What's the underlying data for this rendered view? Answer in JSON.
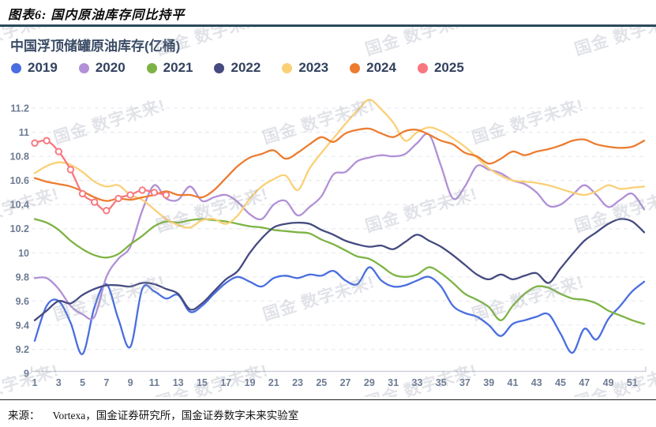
{
  "page": {
    "figure_title": "图表6: 国内原油库存同比持平",
    "source_prefix": "来源：",
    "source_text": "Vortexa，国金证券研究所，国金证券数字未来实验室",
    "watermark_text": "国金 数字未来!"
  },
  "chart": {
    "title": "中国浮顶储罐原油库存(亿桶)"
  },
  "chart_data": {
    "type": "line",
    "title": "中国浮顶储罐原油库存(亿桶)",
    "xlabel": "",
    "ylabel": "",
    "x_count": 52,
    "x_tick_labels": [
      1,
      3,
      5,
      7,
      9,
      11,
      13,
      15,
      17,
      19,
      21,
      23,
      25,
      27,
      29,
      31,
      33,
      35,
      37,
      39,
      41,
      43,
      45,
      47,
      49,
      51
    ],
    "ylim": [
      9,
      11.2
    ],
    "y_ticks": [
      9,
      9.2,
      9.4,
      9.6,
      9.8,
      10,
      10.2,
      10.4,
      10.6,
      10.8,
      11,
      11.2
    ],
    "grid": "horizontal-dashed",
    "legend_position": "top-left",
    "series": [
      {
        "name": "2019",
        "color": "#4a6edf",
        "markers": "none",
        "values": [
          9.27,
          9.56,
          9.6,
          9.42,
          9.16,
          9.55,
          9.74,
          9.45,
          9.22,
          9.7,
          9.68,
          9.62,
          9.65,
          9.51,
          9.56,
          9.66,
          9.75,
          9.8,
          9.76,
          9.72,
          9.79,
          9.81,
          9.79,
          9.82,
          9.81,
          9.85,
          9.77,
          9.74,
          9.88,
          9.77,
          9.72,
          9.73,
          9.77,
          9.8,
          9.72,
          9.56,
          9.5,
          9.47,
          9.4,
          9.31,
          9.41,
          9.44,
          9.47,
          9.49,
          9.33,
          9.17,
          9.37,
          9.28,
          9.45,
          9.56,
          9.68,
          9.76
        ]
      },
      {
        "name": "2020",
        "color": "#b190d6",
        "markers": "none",
        "values": [
          9.79,
          9.79,
          9.7,
          9.56,
          9.49,
          9.47,
          9.8,
          9.95,
          10.05,
          10.35,
          10.56,
          10.45,
          10.44,
          10.55,
          10.43,
          10.46,
          10.48,
          10.42,
          10.32,
          10.28,
          10.4,
          10.43,
          10.31,
          10.38,
          10.47,
          10.65,
          10.67,
          10.76,
          10.79,
          10.81,
          10.8,
          10.82,
          10.91,
          10.98,
          10.72,
          10.45,
          10.55,
          10.72,
          10.69,
          10.66,
          10.6,
          10.57,
          10.5,
          10.39,
          10.4,
          10.48,
          10.56,
          10.48,
          10.38,
          10.44,
          10.49,
          10.36
        ]
      },
      {
        "name": "2021",
        "color": "#7db344",
        "markers": "none",
        "values": [
          10.28,
          10.25,
          10.19,
          10.1,
          10.03,
          9.98,
          9.96,
          9.99,
          10.07,
          10.14,
          10.22,
          10.26,
          10.25,
          10.27,
          10.28,
          10.27,
          10.26,
          10.24,
          10.22,
          10.21,
          10.19,
          10.18,
          10.17,
          10.16,
          10.11,
          10.07,
          10.02,
          9.97,
          9.95,
          9.89,
          9.82,
          9.8,
          9.82,
          9.88,
          9.83,
          9.75,
          9.66,
          9.61,
          9.55,
          9.44,
          9.56,
          9.66,
          9.72,
          9.71,
          9.66,
          9.62,
          9.61,
          9.58,
          9.52,
          9.48,
          9.44,
          9.41
        ]
      },
      {
        "name": "2022",
        "color": "#454a80",
        "markers": "none",
        "values": [
          9.44,
          9.52,
          9.6,
          9.58,
          9.65,
          9.7,
          9.73,
          9.73,
          9.72,
          9.75,
          9.74,
          9.7,
          9.66,
          9.53,
          9.58,
          9.68,
          9.78,
          9.85,
          10.0,
          10.12,
          10.21,
          10.24,
          10.25,
          10.24,
          10.19,
          10.15,
          10.1,
          10.07,
          10.05,
          10.06,
          10.03,
          10.09,
          10.15,
          10.1,
          10.05,
          9.98,
          9.9,
          9.82,
          9.78,
          9.82,
          9.78,
          9.81,
          9.83,
          9.75,
          9.87,
          9.99,
          10.1,
          10.17,
          10.24,
          10.28,
          10.26,
          10.17
        ]
      },
      {
        "name": "2023",
        "color": "#fad077",
        "markers": "none",
        "values": [
          10.66,
          10.72,
          10.75,
          10.73,
          10.67,
          10.59,
          10.55,
          10.56,
          10.48,
          10.44,
          10.36,
          10.28,
          10.23,
          10.21,
          10.27,
          10.28,
          10.24,
          10.31,
          10.45,
          10.55,
          10.61,
          10.64,
          10.52,
          10.7,
          10.83,
          10.95,
          11.07,
          11.18,
          11.27,
          11.19,
          11.08,
          10.93,
          11.0,
          11.04,
          11.01,
          10.95,
          10.88,
          10.79,
          10.7,
          10.64,
          10.6,
          10.59,
          10.58,
          10.56,
          10.53,
          10.5,
          10.48,
          10.51,
          10.56,
          10.53,
          10.54,
          10.55
        ]
      },
      {
        "name": "2024",
        "color": "#ec7c30",
        "markers": "none",
        "values": [
          10.62,
          10.59,
          10.57,
          10.55,
          10.51,
          10.46,
          10.43,
          10.45,
          10.44,
          10.46,
          10.48,
          10.51,
          10.48,
          10.48,
          10.46,
          10.52,
          10.62,
          10.72,
          10.79,
          10.82,
          10.85,
          10.78,
          10.83,
          10.9,
          10.96,
          10.92,
          10.99,
          11.02,
          11.03,
          10.99,
          10.96,
          11.01,
          11.02,
          10.98,
          10.93,
          10.9,
          10.83,
          10.8,
          10.74,
          10.78,
          10.84,
          10.81,
          10.84,
          10.86,
          10.89,
          10.93,
          10.94,
          10.9,
          10.88,
          10.87,
          10.88,
          10.93
        ]
      },
      {
        "name": "2025",
        "color": "#f8777e",
        "markers": "circle",
        "values": [
          10.91,
          10.93,
          10.84,
          10.69,
          10.49,
          10.42,
          10.35,
          10.45,
          10.48,
          10.52,
          10.5,
          10.48
        ]
      }
    ]
  }
}
